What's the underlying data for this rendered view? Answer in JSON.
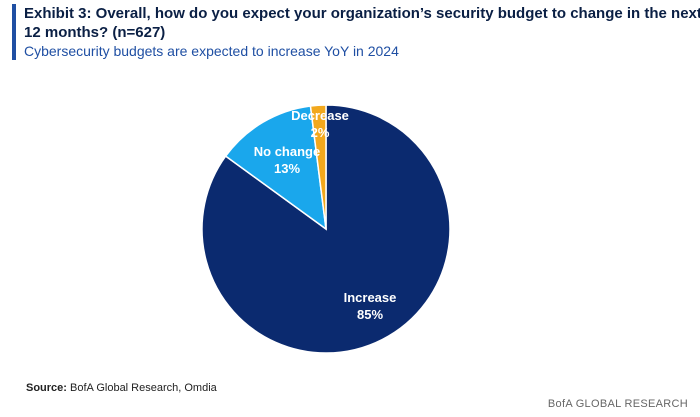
{
  "header": {
    "title": "Exhibit 3: Overall, how do you expect your organization’s security budget to change in the next 12 months? (n=627)",
    "subtitle": "Cybersecurity budgets are expected to increase YoY in 2024"
  },
  "chart_data": {
    "type": "pie",
    "title": "Exhibit 3: Overall, how do you expect your organization’s security budget to change in the next 12 months? (n=627)",
    "subtitle": "Cybersecurity budgets are expected to increase YoY in 2024",
    "slices": [
      {
        "label": "Increase",
        "value": 85,
        "display": "85%",
        "color": "#0b2a6f",
        "text_color": "#ffffff"
      },
      {
        "label": "No change",
        "value": 13,
        "display": "13%",
        "color": "#1aa7ec",
        "text_color": "#ffffff"
      },
      {
        "label": "Decrease",
        "value": 2,
        "display": "2%",
        "color": "#f2a81d",
        "text_color": "#ffffff"
      }
    ]
  },
  "source": {
    "label": "Source:",
    "text": "BofA Global Research, Omdia"
  },
  "footer": {
    "brand": "BofA GLOBAL RESEARCH"
  }
}
